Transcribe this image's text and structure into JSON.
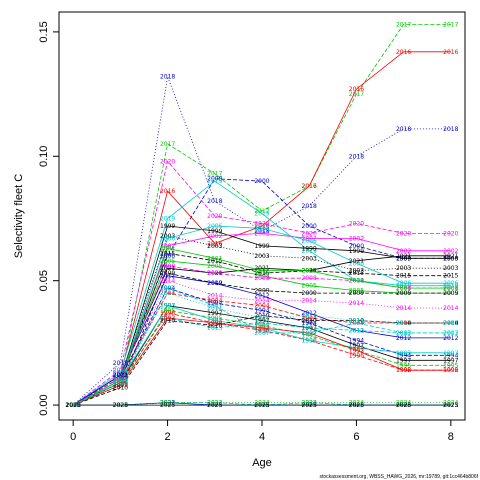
{
  "chart_data": {
    "type": "line",
    "ylabel": "Selectivity fleet C",
    "xlabel": "Age",
    "x": [
      0,
      1,
      2,
      3,
      4,
      5,
      6,
      7,
      8
    ],
    "xlim": [
      -0.3,
      8.3
    ],
    "ylim": [
      -0.006,
      0.158
    ],
    "x_ticks": [
      "0",
      "2",
      "4",
      "6",
      "8"
    ],
    "y_ticks": [
      "0.00",
      "0.05",
      "0.10",
      "0.15"
    ],
    "grid": false,
    "footnote": "stockassessment.org, WBSS_HAWG_2026, mr:19789, git:1cc464b806f",
    "series": [
      {
        "name": "2017",
        "color": "#00cc00",
        "dash": "4,2",
        "values": [
          0.0,
          0.01,
          0.105,
          0.093,
          0.078,
          0.088,
          0.125,
          0.153,
          0.153
        ]
      },
      {
        "name": "2016",
        "color": "#ff0000",
        "dash": "",
        "values": [
          0.0,
          0.012,
          0.086,
          0.065,
          0.072,
          0.088,
          0.127,
          0.142,
          0.142
        ]
      },
      {
        "name": "2018",
        "color": "#0000cc",
        "dash": "1,2",
        "values": [
          0.0,
          0.017,
          0.132,
          0.082,
          0.07,
          0.08,
          0.1,
          0.111,
          0.111
        ]
      },
      {
        "name": "2020",
        "color": "#ff00ff",
        "dash": "4,2",
        "values": [
          0.0,
          0.014,
          0.098,
          0.076,
          0.073,
          0.069,
          0.073,
          0.069,
          0.069
        ]
      },
      {
        "name": "2000",
        "color": "#0000cc",
        "dash": "4,2",
        "values": [
          0.0,
          0.011,
          0.06,
          0.091,
          0.09,
          0.072,
          0.064,
          0.059,
          0.059
        ]
      },
      {
        "name": "2019",
        "color": "#00cccc",
        "dash": "",
        "values": [
          0.0,
          0.013,
          0.075,
          0.09,
          0.077,
          0.062,
          0.05,
          0.048,
          0.048
        ]
      },
      {
        "name": "1999",
        "color": "#000000",
        "dash": "",
        "values": [
          0.0,
          0.01,
          0.072,
          0.07,
          0.064,
          0.063,
          0.062,
          0.059,
          0.059
        ]
      },
      {
        "name": "2003",
        "color": "#000000",
        "dash": "1,2",
        "values": [
          0.0,
          0.011,
          0.068,
          0.064,
          0.06,
          0.059,
          0.054,
          0.055,
          0.055
        ]
      },
      {
        "name": "2015",
        "color": "#000000",
        "dash": "4,2",
        "values": [
          0.0,
          0.009,
          0.061,
          0.058,
          0.053,
          0.054,
          0.053,
          0.052,
          0.052
        ]
      },
      {
        "name": "2002",
        "color": "#ff00ff",
        "dash": "",
        "values": [
          0.0,
          0.01,
          0.064,
          0.068,
          0.069,
          0.067,
          0.067,
          0.062,
          0.062
        ]
      },
      {
        "name": "2021",
        "color": "#000000",
        "dash": "",
        "values": [
          0.0,
          0.012,
          0.055,
          0.053,
          0.055,
          0.054,
          0.058,
          0.06,
          0.06
        ]
      },
      {
        "name": "2005",
        "color": "#00cc00",
        "dash": "",
        "values": [
          0.0,
          0.01,
          0.058,
          0.056,
          0.052,
          0.048,
          0.046,
          0.045,
          0.045
        ]
      },
      {
        "name": "2009",
        "color": "#000000",
        "dash": "4,2",
        "values": [
          0.0,
          0.008,
          0.053,
          0.049,
          0.046,
          0.045,
          0.045,
          0.045,
          0.045
        ]
      },
      {
        "name": "2014",
        "color": "#ff00ff",
        "dash": "1,2",
        "values": [
          0.0,
          0.009,
          0.05,
          0.044,
          0.042,
          0.042,
          0.041,
          0.039,
          0.039
        ]
      },
      {
        "name": "2004",
        "color": "#ff0000",
        "dash": "4,2",
        "values": [
          0.0,
          0.011,
          0.045,
          0.042,
          0.04,
          0.035,
          0.033,
          0.033,
          0.033
        ]
      },
      {
        "name": "2012",
        "color": "#0000cc",
        "dash": "",
        "values": [
          0.0,
          0.012,
          0.052,
          0.049,
          0.044,
          0.037,
          0.03,
          0.027,
          0.027
        ]
      },
      {
        "name": "1994",
        "color": "#0000cc",
        "dash": "4,2",
        "values": [
          0.0,
          0.011,
          0.047,
          0.041,
          0.038,
          0.033,
          0.026,
          0.02,
          0.02
        ]
      },
      {
        "name": "1997",
        "color": "#000000",
        "dash": "",
        "values": [
          0.0,
          0.009,
          0.04,
          0.037,
          0.034,
          0.031,
          0.024,
          0.018,
          0.018
        ]
      },
      {
        "name": "1995",
        "color": "#00cc00",
        "dash": "4,2",
        "values": [
          0.0,
          0.008,
          0.038,
          0.035,
          0.032,
          0.028,
          0.022,
          0.016,
          0.016
        ]
      },
      {
        "name": "1996",
        "color": "#ff0000",
        "dash": "4,2",
        "values": [
          0.0,
          0.009,
          0.037,
          0.033,
          0.03,
          0.026,
          0.02,
          0.014,
          0.014
        ]
      },
      {
        "name": "1993",
        "color": "#00cccc",
        "dash": "",
        "values": [
          0.0,
          0.01,
          0.04,
          0.034,
          0.031,
          0.026,
          0.023,
          0.021,
          0.021
        ]
      },
      {
        "name": "2013",
        "color": "#00cccc",
        "dash": "4,2",
        "values": [
          0.0,
          0.008,
          0.035,
          0.031,
          0.033,
          0.031,
          0.03,
          0.029,
          0.029
        ]
      },
      {
        "name": "2010",
        "color": "#000000",
        "dash": "4,2",
        "values": [
          0.0,
          0.007,
          0.034,
          0.032,
          0.036,
          0.034,
          0.034,
          0.033,
          0.033
        ]
      },
      {
        "name": "2011",
        "color": "#00cccc",
        "dash": "1,2",
        "values": [
          0.0,
          0.009,
          0.045,
          0.039,
          0.035,
          0.036,
          0.034,
          0.033,
          0.033
        ]
      },
      {
        "name": "2006",
        "color": "#00cccc",
        "dash": "",
        "values": [
          0.0,
          0.01,
          0.067,
          0.072,
          0.071,
          0.066,
          0.057,
          0.049,
          0.049
        ]
      },
      {
        "name": "2008",
        "color": "#ff00ff",
        "dash": "4,2",
        "values": [
          0.0,
          0.011,
          0.056,
          0.053,
          0.051,
          0.051,
          0.05,
          0.047,
          0.047
        ]
      },
      {
        "name": "2001",
        "color": "#00cc00",
        "dash": "",
        "values": [
          0.0,
          0.01,
          0.063,
          0.059,
          0.054,
          0.054,
          0.05,
          0.047,
          0.047
        ]
      },
      {
        "name": "1992",
        "color": "#ff0000",
        "dash": "",
        "values": [
          0.0,
          0.008,
          0.035,
          0.033,
          0.031,
          0.029,
          0.022,
          0.014,
          0.014
        ]
      },
      {
        "name": "2007",
        "color": "#00cccc",
        "dash": "4,2",
        "values": [
          0.0,
          0.009,
          0.047,
          0.04,
          0.029,
          0.029,
          0.033,
          0.029,
          0.029
        ]
      },
      {
        "name": "2022",
        "color": "#00cccc",
        "dash": "4,2",
        "values": [
          0.0,
          0.0,
          0.001,
          0.001,
          0.0,
          0.001,
          0.0,
          0.0,
          0.0
        ]
      },
      {
        "name": "2023",
        "color": "#0000cc",
        "dash": "",
        "values": [
          0.0,
          0.0,
          0.001,
          0.0,
          0.0,
          0.0,
          0.0,
          0.0,
          0.0
        ]
      },
      {
        "name": "2024",
        "color": "#00cc00",
        "dash": "1,2",
        "values": [
          0.0,
          0.0,
          0.001,
          0.001,
          0.001,
          0.001,
          0.001,
          0.001,
          0.001
        ]
      },
      {
        "name": "2025",
        "color": "#000000",
        "dash": "",
        "values": [
          0.0,
          0.0,
          0.0,
          0.0,
          0.0,
          0.0,
          0.0,
          0.0,
          0.0
        ]
      }
    ]
  }
}
